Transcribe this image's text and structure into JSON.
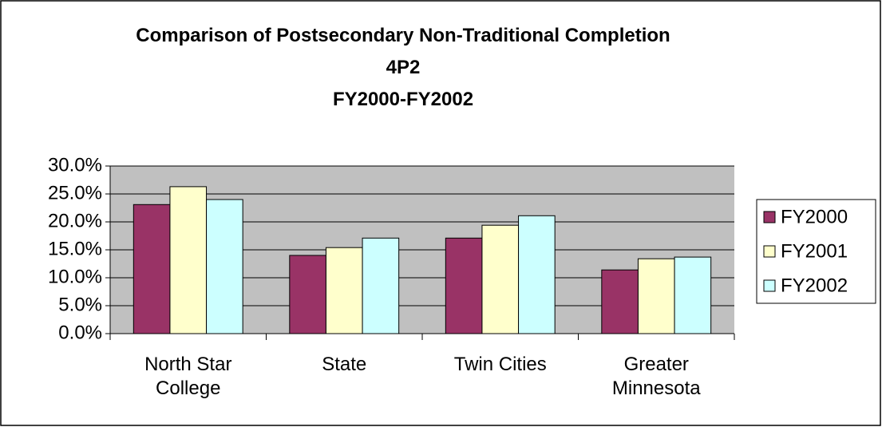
{
  "chart_data": {
    "type": "bar",
    "title": "Comparison of Postsecondary Non-Traditional Completion 4P2",
    "subtitle": "FY2000-FY2002",
    "categories": [
      "North Star College",
      "State",
      "Twin Cities",
      "Greater Minnesota"
    ],
    "series": [
      {
        "name": "FY2000",
        "color": "#993366",
        "values": [
          23.1,
          14.0,
          17.1,
          11.4
        ]
      },
      {
        "name": "FY2001",
        "color": "#ffffcc",
        "values": [
          26.3,
          15.4,
          19.4,
          13.4
        ]
      },
      {
        "name": "FY2002",
        "color": "#ccffff",
        "values": [
          24.0,
          17.1,
          21.1,
          13.7
        ]
      }
    ],
    "ylim": [
      0,
      30
    ],
    "yticks": [
      {
        "value": 0,
        "label": "0.0%"
      },
      {
        "value": 5,
        "label": "5.0%"
      },
      {
        "value": 10,
        "label": "10.0%"
      },
      {
        "value": 15,
        "label": "15.0%"
      },
      {
        "value": 20,
        "label": "20.0%"
      },
      {
        "value": 25,
        "label": "25.0%"
      },
      {
        "value": 30,
        "label": "30.0%"
      }
    ],
    "grid": true,
    "legend": "right"
  }
}
